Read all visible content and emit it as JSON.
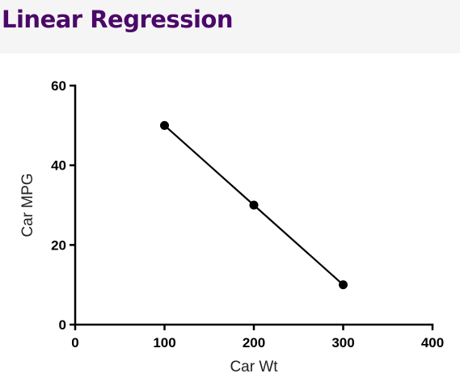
{
  "header": {
    "title": "Linear Regression",
    "title_color": "#4b0869",
    "background": "#f5f5f5"
  },
  "chart_data": {
    "type": "scatter",
    "xlabel": "Car Wt",
    "ylabel": "Car MPG",
    "xlim": [
      0,
      400
    ],
    "ylim": [
      0,
      60
    ],
    "x_ticks": [
      0,
      100,
      200,
      300,
      400
    ],
    "y_ticks": [
      0,
      20,
      40,
      60
    ],
    "grid": false,
    "series": [
      {
        "x": [
          100,
          200,
          300
        ],
        "y": [
          50,
          30,
          10
        ],
        "color": "#000000",
        "fit_line": true
      }
    ]
  }
}
